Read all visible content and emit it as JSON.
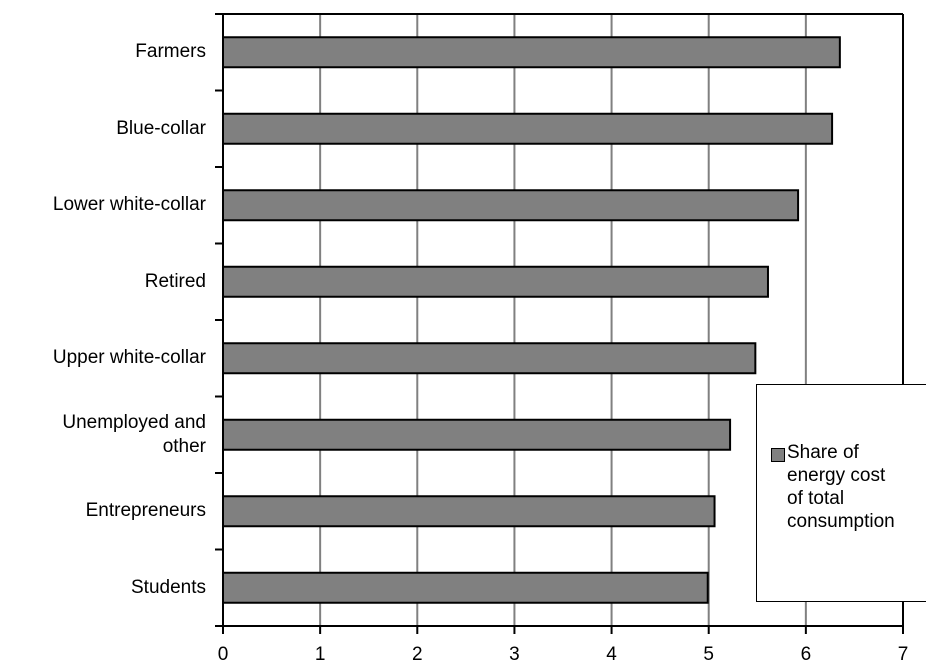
{
  "chart_data": {
    "type": "bar",
    "orientation": "horizontal",
    "categories": [
      "Farmers",
      "Blue-collar",
      "Lower white-collar",
      "Retired",
      "Upper white-collar",
      "Unemployed and\nother",
      "Entrepreneurs",
      "Students"
    ],
    "series": [
      {
        "name": "Share of energy cost of total consumption",
        "values": [
          6.35,
          6.27,
          5.92,
          5.61,
          5.48,
          5.22,
          5.06,
          4.99
        ],
        "color": "#808080"
      }
    ],
    "xlim": [
      0,
      7
    ],
    "xticks": [
      "0",
      "1",
      "2",
      "3",
      "4",
      "5",
      "6",
      "7"
    ],
    "grid": true,
    "legend_position": "right",
    "legend_text": "Share of\nenergy cost\nof total\nconsumption"
  }
}
